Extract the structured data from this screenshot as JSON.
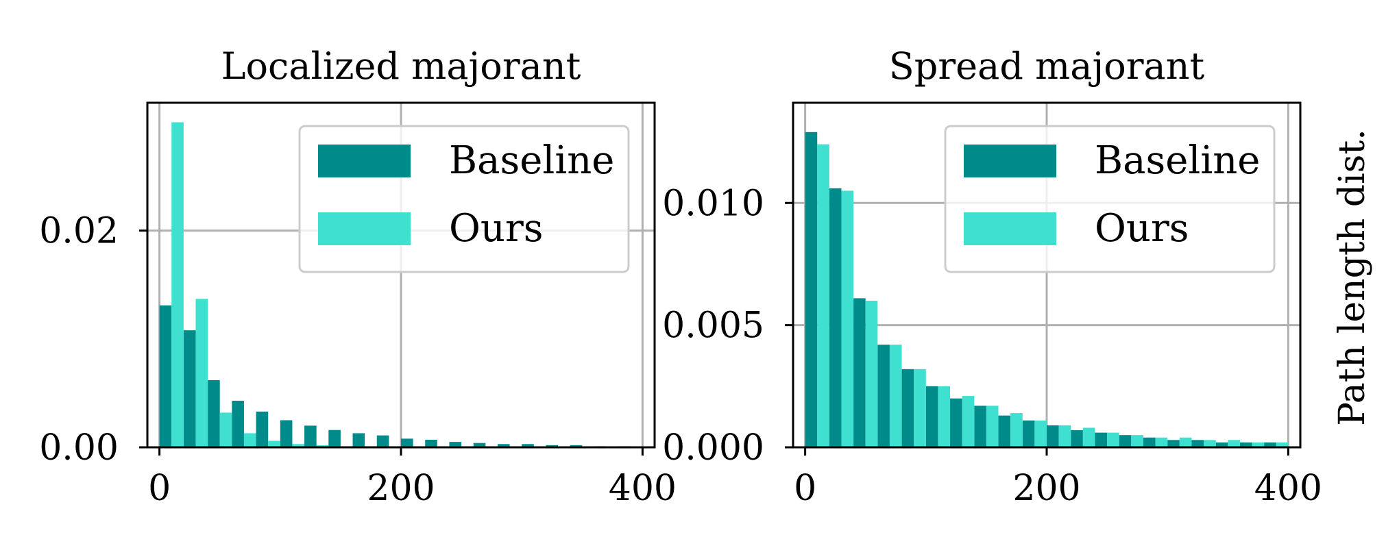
{
  "figure": {
    "right_ylabel": "Path length dist."
  },
  "colors": {
    "baseline": "#008b8b",
    "ours": "#40e0d0",
    "grid": "#b0b0b0",
    "axis": "#000000"
  },
  "chart_data": [
    {
      "type": "bar",
      "title": "Localized majorant",
      "xlabel": "",
      "ylabel": "",
      "xlim": [
        -10,
        410
      ],
      "ylim": [
        0,
        0.0318
      ],
      "xticks": [
        0,
        200,
        400
      ],
      "xtick_labels": [
        "0",
        "200",
        "400"
      ],
      "yticks": [
        0,
        0.02
      ],
      "ytick_labels": [
        "0.00",
        "0.02"
      ],
      "grid": true,
      "legend": {
        "placement": "top-right",
        "entries": [
          "Baseline",
          "Ours"
        ]
      },
      "bin_width": 20,
      "x": [
        10,
        30,
        50,
        70,
        90,
        110,
        130,
        150,
        170,
        190,
        210,
        230,
        250,
        270,
        290,
        310,
        330,
        350,
        370,
        390
      ],
      "series": [
        {
          "name": "Baseline",
          "values": [
            0.0131,
            0.0108,
            0.0062,
            0.0043,
            0.0033,
            0.0025,
            0.002,
            0.0016,
            0.0013,
            0.0011,
            0.0008,
            0.0007,
            0.0005,
            0.0004,
            0.0003,
            0.0003,
            0.0002,
            0.0002,
            0.0001,
            0.0001
          ]
        },
        {
          "name": "Ours",
          "values": [
            0.03,
            0.0137,
            0.0032,
            0.0013,
            0.0006,
            0.0003,
            0.0002,
            0.0001,
            0.0001,
            0.0001,
            0.0,
            0.0,
            0.0,
            0.0,
            0.0,
            0.0,
            0.0,
            0.0,
            0.0,
            0.0
          ]
        }
      ]
    },
    {
      "type": "bar",
      "title": "Spread majorant",
      "xlabel": "",
      "ylabel": "",
      "xlim": [
        -10,
        410
      ],
      "ylim": [
        0,
        0.0141
      ],
      "xticks": [
        0,
        200,
        400
      ],
      "xtick_labels": [
        "0",
        "200",
        "400"
      ],
      "yticks": [
        0,
        0.005,
        0.01
      ],
      "ytick_labels": [
        "0.000",
        "0.005",
        "0.010"
      ],
      "grid": true,
      "legend": {
        "placement": "top-right",
        "entries": [
          "Baseline",
          "Ours"
        ]
      },
      "bin_width": 20,
      "x": [
        10,
        30,
        50,
        70,
        90,
        110,
        130,
        150,
        170,
        190,
        210,
        230,
        250,
        270,
        290,
        310,
        330,
        350,
        370,
        390
      ],
      "series": [
        {
          "name": "Baseline",
          "values": [
            0.0129,
            0.0106,
            0.0061,
            0.0042,
            0.0032,
            0.0025,
            0.002,
            0.0017,
            0.0013,
            0.0011,
            0.0009,
            0.0007,
            0.0006,
            0.0005,
            0.0004,
            0.0003,
            0.0003,
            0.0002,
            0.0002,
            0.0002
          ]
        },
        {
          "name": "Ours",
          "values": [
            0.0124,
            0.0105,
            0.006,
            0.0042,
            0.0032,
            0.0025,
            0.0021,
            0.0017,
            0.0014,
            0.0011,
            0.0009,
            0.0008,
            0.0006,
            0.0005,
            0.0004,
            0.0004,
            0.0003,
            0.0003,
            0.0002,
            0.0002
          ]
        }
      ]
    }
  ]
}
